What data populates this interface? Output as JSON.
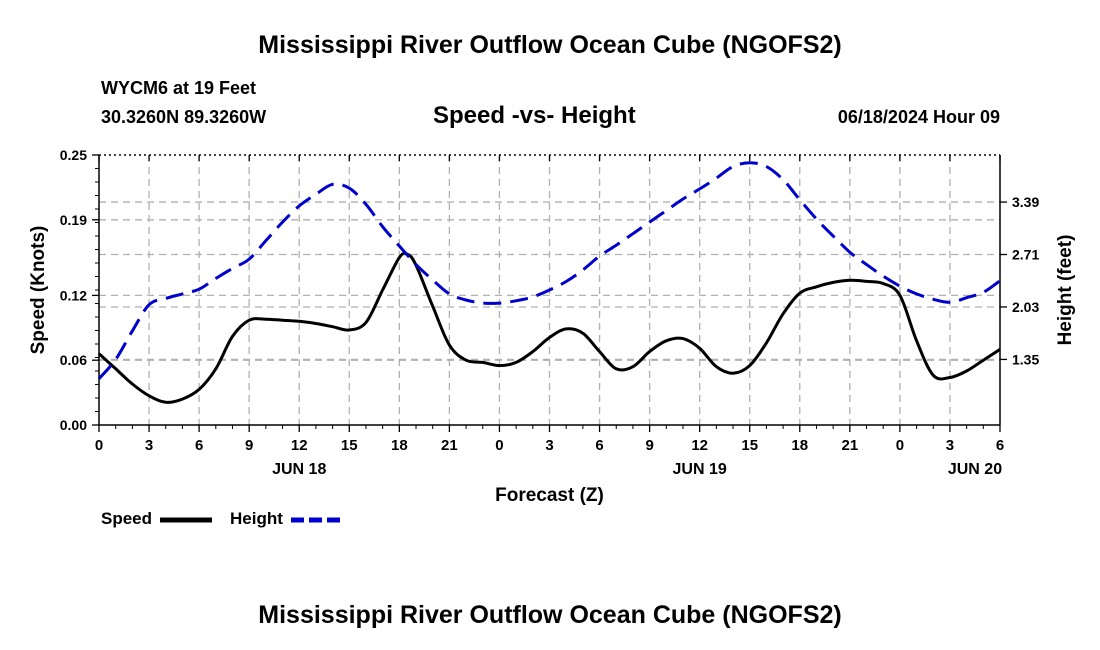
{
  "header": {
    "title": "Mississippi River Outflow Ocean Cube (NGOFS2)",
    "station": "WYCM6 at 19 Feet",
    "coords": "30.3260N  89.3260W",
    "subtitle": "Speed -vs- Height",
    "datetime": "06/18/2024 Hour 09"
  },
  "footer": {
    "title": "Mississippi River Outflow Ocean Cube (NGOFS2)"
  },
  "legend": {
    "speed_label": "Speed",
    "height_label": "Height"
  },
  "colors": {
    "speed": "#000000",
    "height": "#0000cc",
    "grid": "#b0b0b0"
  },
  "chart_data": {
    "type": "line",
    "title": "Speed -vs- Height",
    "xlabel": "Forecast (Z)",
    "ylabel": "Speed (Knots)",
    "ylabel_right": "Height (feet)",
    "x_range": [
      0,
      54
    ],
    "x_ticks": [
      0,
      3,
      6,
      9,
      12,
      15,
      18,
      21,
      24,
      27,
      30,
      33,
      36,
      39,
      42,
      45,
      48,
      51,
      54
    ],
    "x_tick_labels": [
      "0",
      "3",
      "6",
      "9",
      "12",
      "15",
      "18",
      "21",
      "0",
      "3",
      "6",
      "9",
      "12",
      "15",
      "18",
      "21",
      "0",
      "3",
      "6"
    ],
    "day_labels": [
      {
        "x": 12,
        "label": "JUN 18"
      },
      {
        "x": 36,
        "label": "JUN 19"
      },
      {
        "x": 52.5,
        "label": "JUN 20"
      }
    ],
    "ylim": [
      0,
      0.25
    ],
    "y_ticks": [
      0.0,
      0.06,
      0.12,
      0.19,
      0.25
    ],
    "y_tick_labels": [
      "0.00",
      "0.06",
      "0.12",
      "0.19",
      "0.25"
    ],
    "ylim_right": [
      0.5,
      4.0
    ],
    "y_ticks_right": [
      1.35,
      2.03,
      2.71,
      3.39
    ],
    "y_tick_labels_right": [
      "1.35",
      "2.03",
      "2.71",
      "3.39"
    ],
    "series": [
      {
        "name": "Speed",
        "axis": "left",
        "style": "solid",
        "x": [
          0,
          1,
          2,
          3,
          4,
          5,
          6,
          7,
          8,
          9,
          10,
          11,
          12,
          13,
          14,
          15,
          16,
          17,
          18,
          18.5,
          19,
          20,
          21,
          22,
          23,
          24,
          25,
          26,
          27,
          28,
          29,
          30,
          31,
          32,
          33,
          34,
          35,
          36,
          37,
          38,
          39,
          40,
          41,
          42,
          43,
          44,
          45,
          46,
          47,
          48,
          49,
          50,
          51,
          52,
          53,
          54
        ],
        "values": [
          0.066,
          0.052,
          0.038,
          0.027,
          0.021,
          0.024,
          0.033,
          0.052,
          0.082,
          0.097,
          0.098,
          0.097,
          0.096,
          0.094,
          0.091,
          0.088,
          0.095,
          0.125,
          0.155,
          0.158,
          0.148,
          0.11,
          0.074,
          0.06,
          0.058,
          0.055,
          0.058,
          0.068,
          0.081,
          0.089,
          0.085,
          0.068,
          0.052,
          0.054,
          0.068,
          0.078,
          0.08,
          0.071,
          0.054,
          0.048,
          0.055,
          0.076,
          0.103,
          0.122,
          0.128,
          0.132,
          0.134,
          0.133,
          0.131,
          0.12,
          0.078,
          0.046,
          0.044,
          0.05,
          0.06,
          0.07
        ]
      },
      {
        "name": "Height",
        "axis": "right",
        "style": "dashed",
        "x": [
          0,
          1,
          2,
          3,
          4,
          5,
          6,
          7,
          8,
          9,
          10,
          11,
          12,
          13,
          14,
          15,
          16,
          17,
          18,
          19,
          20,
          21,
          22,
          23,
          24,
          25,
          26,
          27,
          28,
          29,
          30,
          31,
          32,
          33,
          34,
          35,
          36,
          37,
          38,
          39,
          40,
          41,
          42,
          43,
          44,
          45,
          46,
          47,
          48,
          49,
          50,
          51,
          52,
          53,
          54
        ],
        "values": [
          1.1,
          1.35,
          1.72,
          2.06,
          2.14,
          2.2,
          2.26,
          2.4,
          2.53,
          2.65,
          2.89,
          3.13,
          3.34,
          3.49,
          3.62,
          3.57,
          3.36,
          3.07,
          2.82,
          2.58,
          2.38,
          2.2,
          2.12,
          2.08,
          2.08,
          2.11,
          2.16,
          2.25,
          2.36,
          2.51,
          2.69,
          2.83,
          2.98,
          3.13,
          3.28,
          3.43,
          3.56,
          3.7,
          3.85,
          3.9,
          3.85,
          3.68,
          3.42,
          3.17,
          2.95,
          2.74,
          2.58,
          2.43,
          2.3,
          2.2,
          2.13,
          2.09,
          2.15,
          2.22,
          2.37
        ]
      }
    ]
  }
}
